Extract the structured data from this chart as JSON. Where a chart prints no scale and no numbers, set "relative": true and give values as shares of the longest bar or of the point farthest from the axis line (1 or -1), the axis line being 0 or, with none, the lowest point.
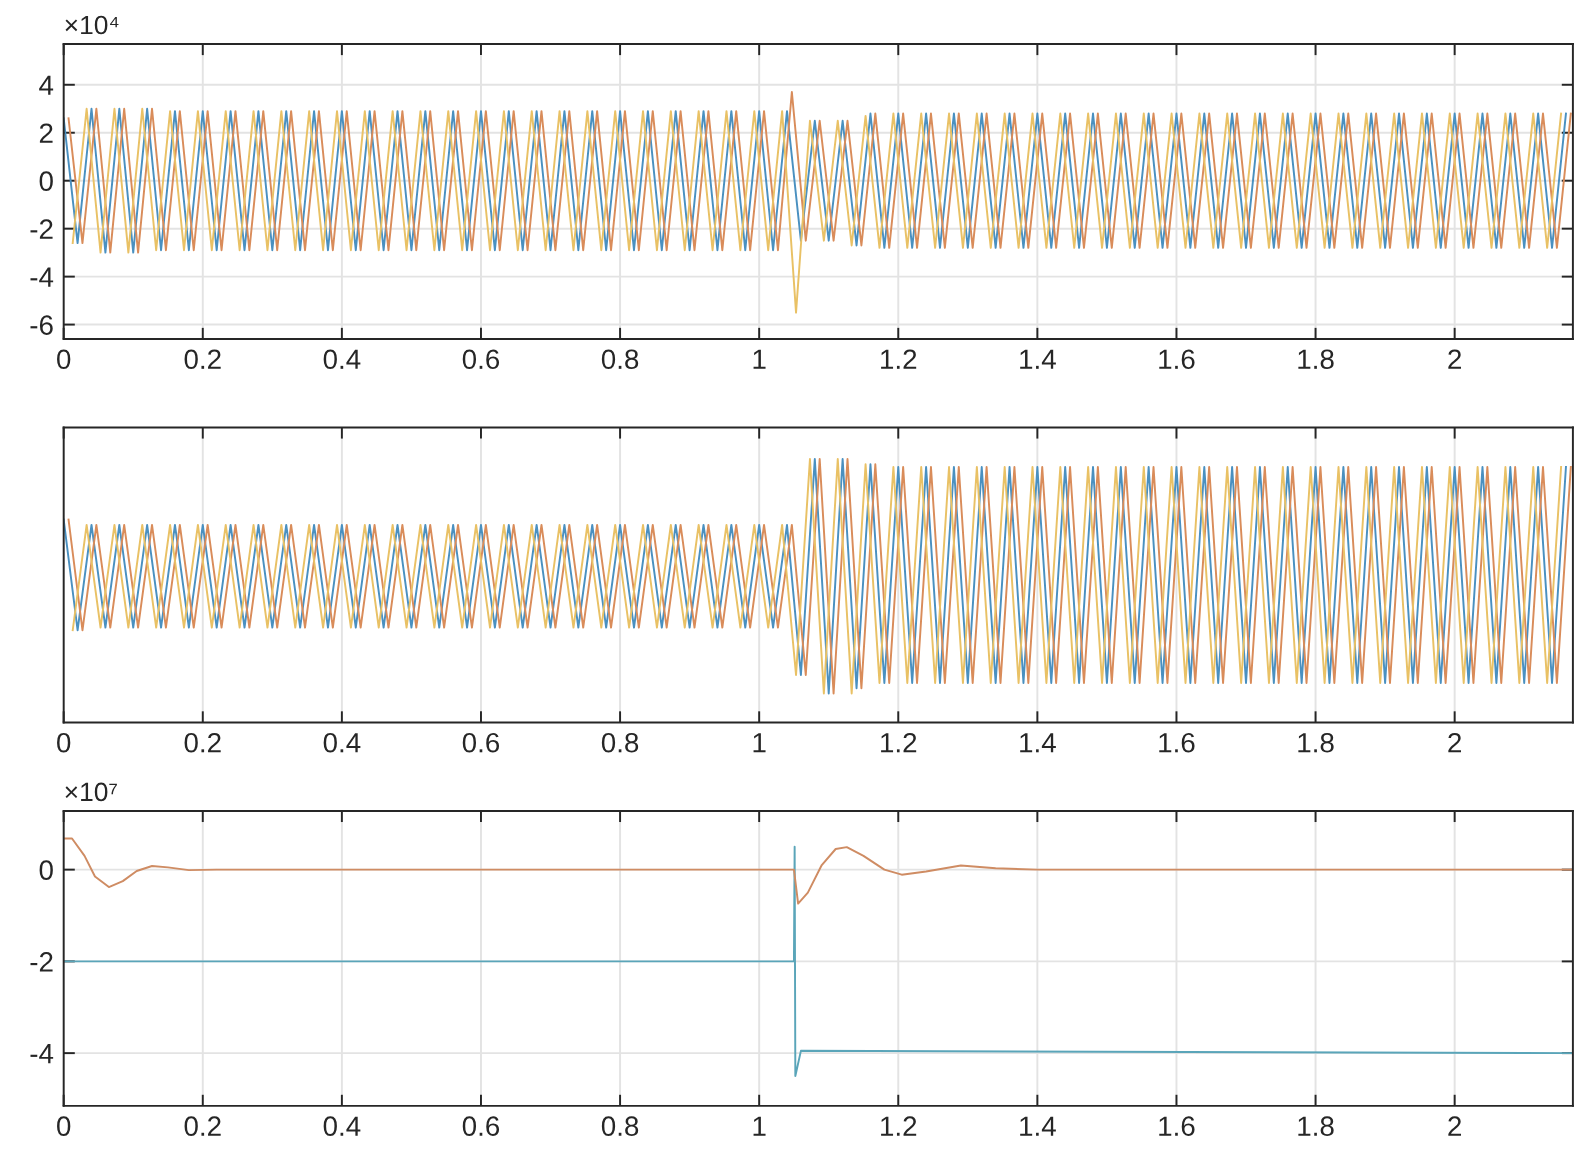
{
  "chart_data": [
    {
      "type": "line",
      "annotations": [
        "×10⁴"
      ],
      "xlim": [
        0,
        2.17
      ],
      "xticks": [
        0,
        0.2,
        0.4,
        0.6,
        0.8,
        1,
        1.2,
        1.4,
        1.6,
        1.8,
        2
      ],
      "ylim": [
        -6.6,
        5.7
      ],
      "yticks": [
        -6,
        -4,
        -2,
        0,
        2,
        4
      ],
      "grid": true,
      "series": [
        {
          "color": "#4a90c0",
          "x": [
            0,
            0.02,
            0.04,
            0.06,
            0.08,
            0.1,
            0.12,
            0.14,
            0.16,
            0.18,
            0.2,
            0.22,
            0.24,
            0.26,
            0.28,
            0.3,
            0.32,
            0.34,
            0.36,
            0.38,
            0.4,
            0.42,
            0.44,
            0.46,
            0.48,
            0.5,
            0.52,
            0.54,
            0.56,
            0.58,
            0.6,
            0.62,
            0.64,
            0.66,
            0.68,
            0.7,
            0.72,
            0.74,
            0.76,
            0.78,
            0.8,
            0.82,
            0.84,
            0.86,
            0.88,
            0.9,
            0.92,
            0.94,
            0.96,
            0.98,
            1,
            1.02,
            1.04,
            1.06,
            1.08,
            1.1,
            1.12,
            1.14,
            1.16,
            1.18,
            1.2,
            1.22,
            1.24,
            1.26,
            1.28,
            1.3,
            1.32,
            1.34,
            1.36,
            1.38,
            1.4,
            1.42,
            1.44,
            1.46,
            1.48,
            1.5,
            1.52,
            1.54,
            1.56,
            1.58,
            1.6,
            1.62,
            1.64,
            1.66,
            1.68,
            1.7,
            1.72,
            1.74,
            1.76,
            1.78,
            1.8,
            1.82,
            1.84,
            1.86,
            1.88,
            1.9,
            1.92,
            1.94,
            1.96,
            1.98,
            2,
            2.02,
            2.04,
            2.06,
            2.08,
            2.1,
            2.12,
            2.14,
            2.16
          ],
          "values": [
            2.6,
            -2.6,
            3,
            -3,
            3,
            -3,
            3,
            -2.9,
            2.9,
            -2.9,
            2.9,
            -2.9,
            2.9,
            -2.9,
            2.9,
            -2.9,
            2.9,
            -2.9,
            2.9,
            -2.9,
            2.9,
            -2.9,
            2.9,
            -2.9,
            2.9,
            -2.9,
            2.9,
            -2.9,
            2.9,
            -2.9,
            2.9,
            -2.9,
            2.9,
            -2.9,
            2.9,
            -2.9,
            2.9,
            -2.9,
            2.9,
            -2.9,
            2.9,
            -2.9,
            2.9,
            -2.9,
            2.9,
            -2.9,
            2.9,
            -2.9,
            2.9,
            -2.9,
            2.9,
            -2.9,
            2.9,
            -2.5,
            2.5,
            -2.5,
            2.5,
            -2.7,
            2.8,
            -2.8,
            2.8,
            -2.8,
            2.8,
            -2.8,
            2.8,
            -2.8,
            2.8,
            -2.8,
            2.8,
            -2.8,
            2.8,
            -2.8,
            2.8,
            -2.8,
            2.8,
            -2.8,
            2.8,
            -2.8,
            2.8,
            -2.8,
            2.8,
            -2.8,
            2.8,
            -2.8,
            2.8,
            -2.8,
            2.8,
            -2.8,
            2.8,
            -2.8,
            2.8,
            -2.8,
            2.8,
            -2.8,
            2.8,
            -2.8,
            2.8,
            -2.8,
            2.8,
            -2.8,
            2.8,
            -2.8,
            2.8,
            -2.8,
            2.8,
            -2.8,
            2.8,
            -2.8,
            2.8
          ]
        },
        {
          "color": "#d98c5a",
          "x": [
            0.007,
            0.027,
            0.047,
            0.067,
            0.087,
            0.107,
            0.127,
            0.147,
            0.167,
            0.187,
            0.207,
            0.227,
            0.247,
            0.267,
            0.287,
            0.307,
            0.327,
            0.347,
            0.367,
            0.387,
            0.407,
            0.427,
            0.447,
            0.467,
            0.487,
            0.507,
            0.527,
            0.547,
            0.567,
            0.587,
            0.607,
            0.627,
            0.647,
            0.667,
            0.687,
            0.707,
            0.727,
            0.747,
            0.767,
            0.787,
            0.807,
            0.827,
            0.847,
            0.867,
            0.887,
            0.907,
            0.927,
            0.947,
            0.967,
            0.987,
            1.007,
            1.027,
            1.047,
            1.067,
            1.087,
            1.107,
            1.127,
            1.147,
            1.167,
            1.187,
            1.207,
            1.227,
            1.247,
            1.267,
            1.287,
            1.307,
            1.327,
            1.347,
            1.367,
            1.387,
            1.407,
            1.427,
            1.447,
            1.467,
            1.487,
            1.507,
            1.527,
            1.547,
            1.567,
            1.587,
            1.607,
            1.627,
            1.647,
            1.667,
            1.687,
            1.707,
            1.727,
            1.747,
            1.767,
            1.787,
            1.807,
            1.827,
            1.847,
            1.867,
            1.887,
            1.907,
            1.927,
            1.947,
            1.967,
            1.987,
            2.007,
            2.027,
            2.047,
            2.067,
            2.087,
            2.107,
            2.127,
            2.147,
            2.167
          ],
          "values": [
            2.6,
            -2.6,
            3,
            -3,
            3,
            -3,
            3,
            -2.9,
            2.9,
            -2.9,
            2.9,
            -2.9,
            2.9,
            -2.9,
            2.9,
            -2.9,
            2.9,
            -2.9,
            2.9,
            -2.9,
            2.9,
            -2.9,
            2.9,
            -2.9,
            2.9,
            -2.9,
            2.9,
            -2.9,
            2.9,
            -2.9,
            2.9,
            -2.9,
            2.9,
            -2.9,
            2.9,
            -2.9,
            2.9,
            -2.9,
            2.9,
            -2.9,
            2.9,
            -2.9,
            2.9,
            -2.9,
            2.9,
            -2.9,
            2.9,
            -2.9,
            2.9,
            -2.9,
            2.9,
            -2.9,
            3.7,
            -2.5,
            2.5,
            -2.5,
            2.5,
            -2.7,
            2.8,
            -2.8,
            2.8,
            -2.8,
            2.8,
            -2.8,
            2.8,
            -2.8,
            2.8,
            -2.8,
            2.8,
            -2.8,
            2.8,
            -2.8,
            2.8,
            -2.8,
            2.8,
            -2.8,
            2.8,
            -2.8,
            2.8,
            -2.8,
            2.8,
            -2.8,
            2.8,
            -2.8,
            2.8,
            -2.8,
            2.8,
            -2.8,
            2.8,
            -2.8,
            2.8,
            -2.8,
            2.8,
            -2.8,
            2.8,
            -2.8,
            2.8,
            -2.8,
            2.8,
            -2.8,
            2.8,
            -2.8,
            2.8,
            -2.8,
            2.8,
            -2.8,
            2.8,
            -2.8,
            2.8
          ]
        },
        {
          "color": "#e9c165",
          "x": [
            0.013,
            0.033,
            0.053,
            0.073,
            0.093,
            0.113,
            0.133,
            0.153,
            0.173,
            0.193,
            0.213,
            0.233,
            0.253,
            0.273,
            0.293,
            0.313,
            0.333,
            0.353,
            0.373,
            0.393,
            0.413,
            0.433,
            0.453,
            0.473,
            0.493,
            0.513,
            0.533,
            0.553,
            0.573,
            0.593,
            0.613,
            0.633,
            0.653,
            0.673,
            0.693,
            0.713,
            0.733,
            0.753,
            0.773,
            0.793,
            0.813,
            0.833,
            0.853,
            0.873,
            0.893,
            0.913,
            0.933,
            0.953,
            0.973,
            0.993,
            1.013,
            1.033,
            1.053,
            1.073,
            1.093,
            1.113,
            1.133,
            1.153,
            1.173,
            1.193,
            1.213,
            1.233,
            1.253,
            1.273,
            1.293,
            1.313,
            1.333,
            1.353,
            1.373,
            1.393,
            1.413,
            1.433,
            1.453,
            1.473,
            1.493,
            1.513,
            1.533,
            1.553,
            1.573,
            1.593,
            1.613,
            1.633,
            1.653,
            1.673,
            1.693,
            1.713,
            1.733,
            1.753,
            1.773,
            1.793,
            1.813,
            1.833,
            1.853,
            1.873,
            1.893,
            1.913,
            1.933,
            1.953,
            1.973,
            1.993,
            2.013,
            2.033,
            2.053,
            2.073,
            2.093,
            2.113,
            2.133,
            2.153
          ],
          "values": [
            -2.6,
            3,
            -3,
            3,
            -3,
            3,
            -2.9,
            2.9,
            -2.9,
            2.9,
            -2.9,
            2.9,
            -2.9,
            2.9,
            -2.9,
            2.9,
            -2.9,
            2.9,
            -2.9,
            2.9,
            -2.9,
            2.9,
            -2.9,
            2.9,
            -2.9,
            2.9,
            -2.9,
            2.9,
            -2.9,
            2.9,
            -2.9,
            2.9,
            -2.9,
            2.9,
            -2.9,
            2.9,
            -2.9,
            2.9,
            -2.9,
            2.9,
            -2.9,
            2.9,
            -2.9,
            2.9,
            -2.9,
            2.9,
            -2.9,
            2.9,
            -2.9,
            2.9,
            -2.9,
            2.9,
            -5.5,
            2.5,
            -2.5,
            2.5,
            -2.7,
            2.7,
            -2.8,
            2.8,
            -2.8,
            2.8,
            -2.8,
            2.8,
            -2.8,
            2.8,
            -2.8,
            2.8,
            -2.8,
            2.8,
            -2.8,
            2.8,
            -2.8,
            2.8,
            -2.8,
            2.8,
            -2.8,
            2.8,
            -2.8,
            2.8,
            -2.8,
            2.8,
            -2.8,
            2.8,
            -2.8,
            2.8,
            -2.8,
            2.8,
            -2.8,
            2.8,
            -2.8,
            2.8,
            -2.8,
            2.8,
            -2.8,
            2.8,
            -2.8,
            2.8,
            -2.8,
            2.8,
            -2.8,
            2.8,
            -2.8,
            2.8,
            -2.8,
            2.8,
            -2.8,
            2.8
          ]
        }
      ]
    },
    {
      "type": "line",
      "relative": true,
      "tick_labels": "x",
      "xlim": [
        0,
        2.17
      ],
      "xticks": [
        0,
        0.2,
        0.4,
        0.6,
        0.8,
        1,
        1.2,
        1.4,
        1.6,
        1.8,
        2
      ],
      "grid": "x",
      "series": [
        {
          "color": "#4a90c0",
          "x": [
            0,
            0.02,
            0.04,
            0.06,
            0.08,
            0.1,
            0.12,
            0.14,
            0.16,
            0.18,
            0.2,
            0.22,
            0.24,
            0.26,
            0.28,
            0.3,
            0.32,
            0.34,
            0.36,
            0.38,
            0.4,
            0.42,
            0.44,
            0.46,
            0.48,
            0.5,
            0.52,
            0.54,
            0.56,
            0.58,
            0.6,
            0.62,
            0.64,
            0.66,
            0.68,
            0.7,
            0.72,
            0.74,
            0.76,
            0.78,
            0.8,
            0.82,
            0.84,
            0.86,
            0.88,
            0.9,
            0.92,
            0.94,
            0.96,
            0.98,
            1,
            1.02,
            1.04,
            1.06,
            1.08,
            1.1,
            1.12,
            1.14,
            1.16,
            1.18,
            1.2,
            1.22,
            1.24,
            1.26,
            1.28,
            1.3,
            1.32,
            1.34,
            1.36,
            1.38,
            1.4,
            1.42,
            1.44,
            1.46,
            1.48,
            1.5,
            1.52,
            1.54,
            1.56,
            1.58,
            1.6,
            1.62,
            1.64,
            1.66,
            1.68,
            1.7,
            1.72,
            1.74,
            1.76,
            1.78,
            1.8,
            1.82,
            1.84,
            1.86,
            1.88,
            1.9,
            1.92,
            1.94,
            1.96,
            1.98,
            2,
            2.02,
            2.04,
            2.06,
            2.08,
            2.1,
            2.12,
            2.14,
            2.16
          ],
          "values": [
            0.77,
            0.35,
            0.75,
            0.36,
            0.75,
            0.36,
            0.75,
            0.36,
            0.75,
            0.36,
            0.75,
            0.36,
            0.75,
            0.36,
            0.75,
            0.36,
            0.75,
            0.36,
            0.75,
            0.36,
            0.75,
            0.36,
            0.75,
            0.36,
            0.75,
            0.36,
            0.75,
            0.36,
            0.75,
            0.36,
            0.75,
            0.36,
            0.75,
            0.36,
            0.75,
            0.36,
            0.75,
            0.36,
            0.75,
            0.36,
            0.75,
            0.36,
            0.75,
            0.36,
            0.75,
            0.36,
            0.75,
            0.36,
            0.75,
            0.36,
            0.75,
            0.36,
            0.75,
            0.18,
            1,
            0.11,
            1,
            0.13,
            0.98,
            0.15,
            0.97,
            0.15,
            0.97,
            0.15,
            0.97,
            0.15,
            0.97,
            0.15,
            0.97,
            0.15,
            0.97,
            0.15,
            0.97,
            0.15,
            0.97,
            0.15,
            0.97,
            0.15,
            0.97,
            0.15,
            0.97,
            0.15,
            0.97,
            0.15,
            0.97,
            0.15,
            0.97,
            0.15,
            0.97,
            0.15,
            0.97,
            0.15,
            0.97,
            0.15,
            0.97,
            0.15,
            0.97,
            0.15,
            0.97,
            0.15,
            0.97,
            0.15,
            0.97,
            0.15,
            0.97,
            0.15,
            0.97,
            0.15,
            0.97
          ]
        },
        {
          "color": "#d98c5a",
          "x": [
            0.007,
            0.027,
            0.047,
            0.067,
            0.087,
            0.107,
            0.127,
            0.147,
            0.167,
            0.187,
            0.207,
            0.227,
            0.247,
            0.267,
            0.287,
            0.307,
            0.327,
            0.347,
            0.367,
            0.387,
            0.407,
            0.427,
            0.447,
            0.467,
            0.487,
            0.507,
            0.527,
            0.547,
            0.567,
            0.587,
            0.607,
            0.627,
            0.647,
            0.667,
            0.687,
            0.707,
            0.727,
            0.747,
            0.767,
            0.787,
            0.807,
            0.827,
            0.847,
            0.867,
            0.887,
            0.907,
            0.927,
            0.947,
            0.967,
            0.987,
            1.007,
            1.027,
            1.047,
            1.067,
            1.087,
            1.107,
            1.127,
            1.147,
            1.167,
            1.187,
            1.207,
            1.227,
            1.247,
            1.267,
            1.287,
            1.307,
            1.327,
            1.347,
            1.367,
            1.387,
            1.407,
            1.427,
            1.447,
            1.467,
            1.487,
            1.507,
            1.527,
            1.547,
            1.567,
            1.587,
            1.607,
            1.627,
            1.647,
            1.667,
            1.687,
            1.707,
            1.727,
            1.747,
            1.767,
            1.787,
            1.807,
            1.827,
            1.847,
            1.867,
            1.887,
            1.907,
            1.927,
            1.947,
            1.967,
            1.987,
            2.007,
            2.027,
            2.047,
            2.067,
            2.087,
            2.107,
            2.127,
            2.147,
            2.167
          ],
          "values": [
            0.77,
            0.35,
            0.75,
            0.36,
            0.75,
            0.36,
            0.75,
            0.36,
            0.75,
            0.36,
            0.75,
            0.36,
            0.75,
            0.36,
            0.75,
            0.36,
            0.75,
            0.36,
            0.75,
            0.36,
            0.75,
            0.36,
            0.75,
            0.36,
            0.75,
            0.36,
            0.75,
            0.36,
            0.75,
            0.36,
            0.75,
            0.36,
            0.75,
            0.36,
            0.75,
            0.36,
            0.75,
            0.36,
            0.75,
            0.36,
            0.75,
            0.36,
            0.75,
            0.36,
            0.75,
            0.36,
            0.75,
            0.36,
            0.75,
            0.36,
            0.75,
            0.36,
            0.75,
            0.18,
            1,
            0.11,
            1,
            0.13,
            0.98,
            0.15,
            0.97,
            0.15,
            0.97,
            0.15,
            0.97,
            0.15,
            0.97,
            0.15,
            0.97,
            0.15,
            0.97,
            0.15,
            0.97,
            0.15,
            0.97,
            0.15,
            0.97,
            0.15,
            0.97,
            0.15,
            0.97,
            0.15,
            0.97,
            0.15,
            0.97,
            0.15,
            0.97,
            0.15,
            0.97,
            0.15,
            0.97,
            0.15,
            0.97,
            0.15,
            0.97,
            0.15,
            0.97,
            0.15,
            0.97,
            0.15,
            0.97,
            0.15,
            0.97,
            0.15,
            0.97,
            0.15,
            0.97,
            0.15,
            0.97
          ]
        },
        {
          "color": "#e9c165",
          "x": [
            0.013,
            0.033,
            0.053,
            0.073,
            0.093,
            0.113,
            0.133,
            0.153,
            0.173,
            0.193,
            0.213,
            0.233,
            0.253,
            0.273,
            0.293,
            0.313,
            0.333,
            0.353,
            0.373,
            0.393,
            0.413,
            0.433,
            0.453,
            0.473,
            0.493,
            0.513,
            0.533,
            0.553,
            0.573,
            0.593,
            0.613,
            0.633,
            0.653,
            0.673,
            0.693,
            0.713,
            0.733,
            0.753,
            0.773,
            0.793,
            0.813,
            0.833,
            0.853,
            0.873,
            0.893,
            0.913,
            0.933,
            0.953,
            0.973,
            0.993,
            1.013,
            1.033,
            1.053,
            1.073,
            1.093,
            1.113,
            1.133,
            1.153,
            1.173,
            1.193,
            1.213,
            1.233,
            1.253,
            1.273,
            1.293,
            1.313,
            1.333,
            1.353,
            1.373,
            1.393,
            1.413,
            1.433,
            1.453,
            1.473,
            1.493,
            1.513,
            1.533,
            1.553,
            1.573,
            1.593,
            1.613,
            1.633,
            1.653,
            1.673,
            1.693,
            1.713,
            1.733,
            1.753,
            1.773,
            1.793,
            1.813,
            1.833,
            1.853,
            1.873,
            1.893,
            1.913,
            1.933,
            1.953,
            1.973,
            1.993,
            2.013,
            2.033,
            2.053,
            2.073,
            2.093,
            2.113,
            2.133,
            2.153
          ],
          "values": [
            0.35,
            0.75,
            0.36,
            0.75,
            0.36,
            0.75,
            0.36,
            0.75,
            0.36,
            0.75,
            0.36,
            0.75,
            0.36,
            0.75,
            0.36,
            0.75,
            0.36,
            0.75,
            0.36,
            0.75,
            0.36,
            0.75,
            0.36,
            0.75,
            0.36,
            0.75,
            0.36,
            0.75,
            0.36,
            0.75,
            0.36,
            0.75,
            0.36,
            0.75,
            0.36,
            0.75,
            0.36,
            0.75,
            0.36,
            0.75,
            0.36,
            0.75,
            0.36,
            0.75,
            0.36,
            0.75,
            0.36,
            0.75,
            0.36,
            0.75,
            0.36,
            0.75,
            0.18,
            1,
            0.11,
            1,
            0.11,
            0.98,
            0.15,
            0.97,
            0.15,
            0.97,
            0.15,
            0.97,
            0.15,
            0.97,
            0.15,
            0.97,
            0.15,
            0.97,
            0.15,
            0.97,
            0.15,
            0.97,
            0.15,
            0.97,
            0.15,
            0.97,
            0.15,
            0.97,
            0.15,
            0.97,
            0.15,
            0.97,
            0.15,
            0.97,
            0.15,
            0.97,
            0.15,
            0.97,
            0.15,
            0.97,
            0.15,
            0.97,
            0.15,
            0.97,
            0.15,
            0.97,
            0.15,
            0.97,
            0.15,
            0.97,
            0.15,
            0.97,
            0.15,
            0.97,
            0.15,
            0.97
          ]
        }
      ]
    },
    {
      "type": "line",
      "annotations": [
        "×10⁷"
      ],
      "xlim": [
        0,
        2.17
      ],
      "xticks": [
        0,
        0.2,
        0.4,
        0.6,
        0.8,
        1,
        1.2,
        1.4,
        1.6,
        1.8,
        2
      ],
      "ylim": [
        -5.15,
        1.28
      ],
      "yticks": [
        -4,
        -2,
        0
      ],
      "grid": true,
      "series": [
        {
          "color": "#5aa5b9",
          "x": [
            0,
            1.05,
            1.051,
            1.052,
            1.06,
            2.17
          ],
          "values": [
            -2,
            -2,
            0.5,
            -4.5,
            -3.95,
            -4
          ]
        },
        {
          "color": "#cf8c63",
          "x": [
            0,
            0.012,
            0.03,
            0.045,
            0.065,
            0.085,
            0.105,
            0.127,
            0.15,
            0.18,
            0.22,
            1.05,
            1.056,
            1.07,
            1.09,
            1.11,
            1.126,
            1.15,
            1.18,
            1.205,
            1.24,
            1.29,
            1.34,
            1.4,
            2.17
          ],
          "values": [
            0.68,
            0.68,
            0.3,
            -0.15,
            -0.38,
            -0.25,
            -0.03,
            0.08,
            0.05,
            -0.01,
            0,
            0,
            -0.74,
            -0.5,
            0.1,
            0.45,
            0.49,
            0.3,
            0,
            -0.11,
            -0.04,
            0.09,
            0.03,
            0,
            0
          ]
        }
      ]
    }
  ]
}
